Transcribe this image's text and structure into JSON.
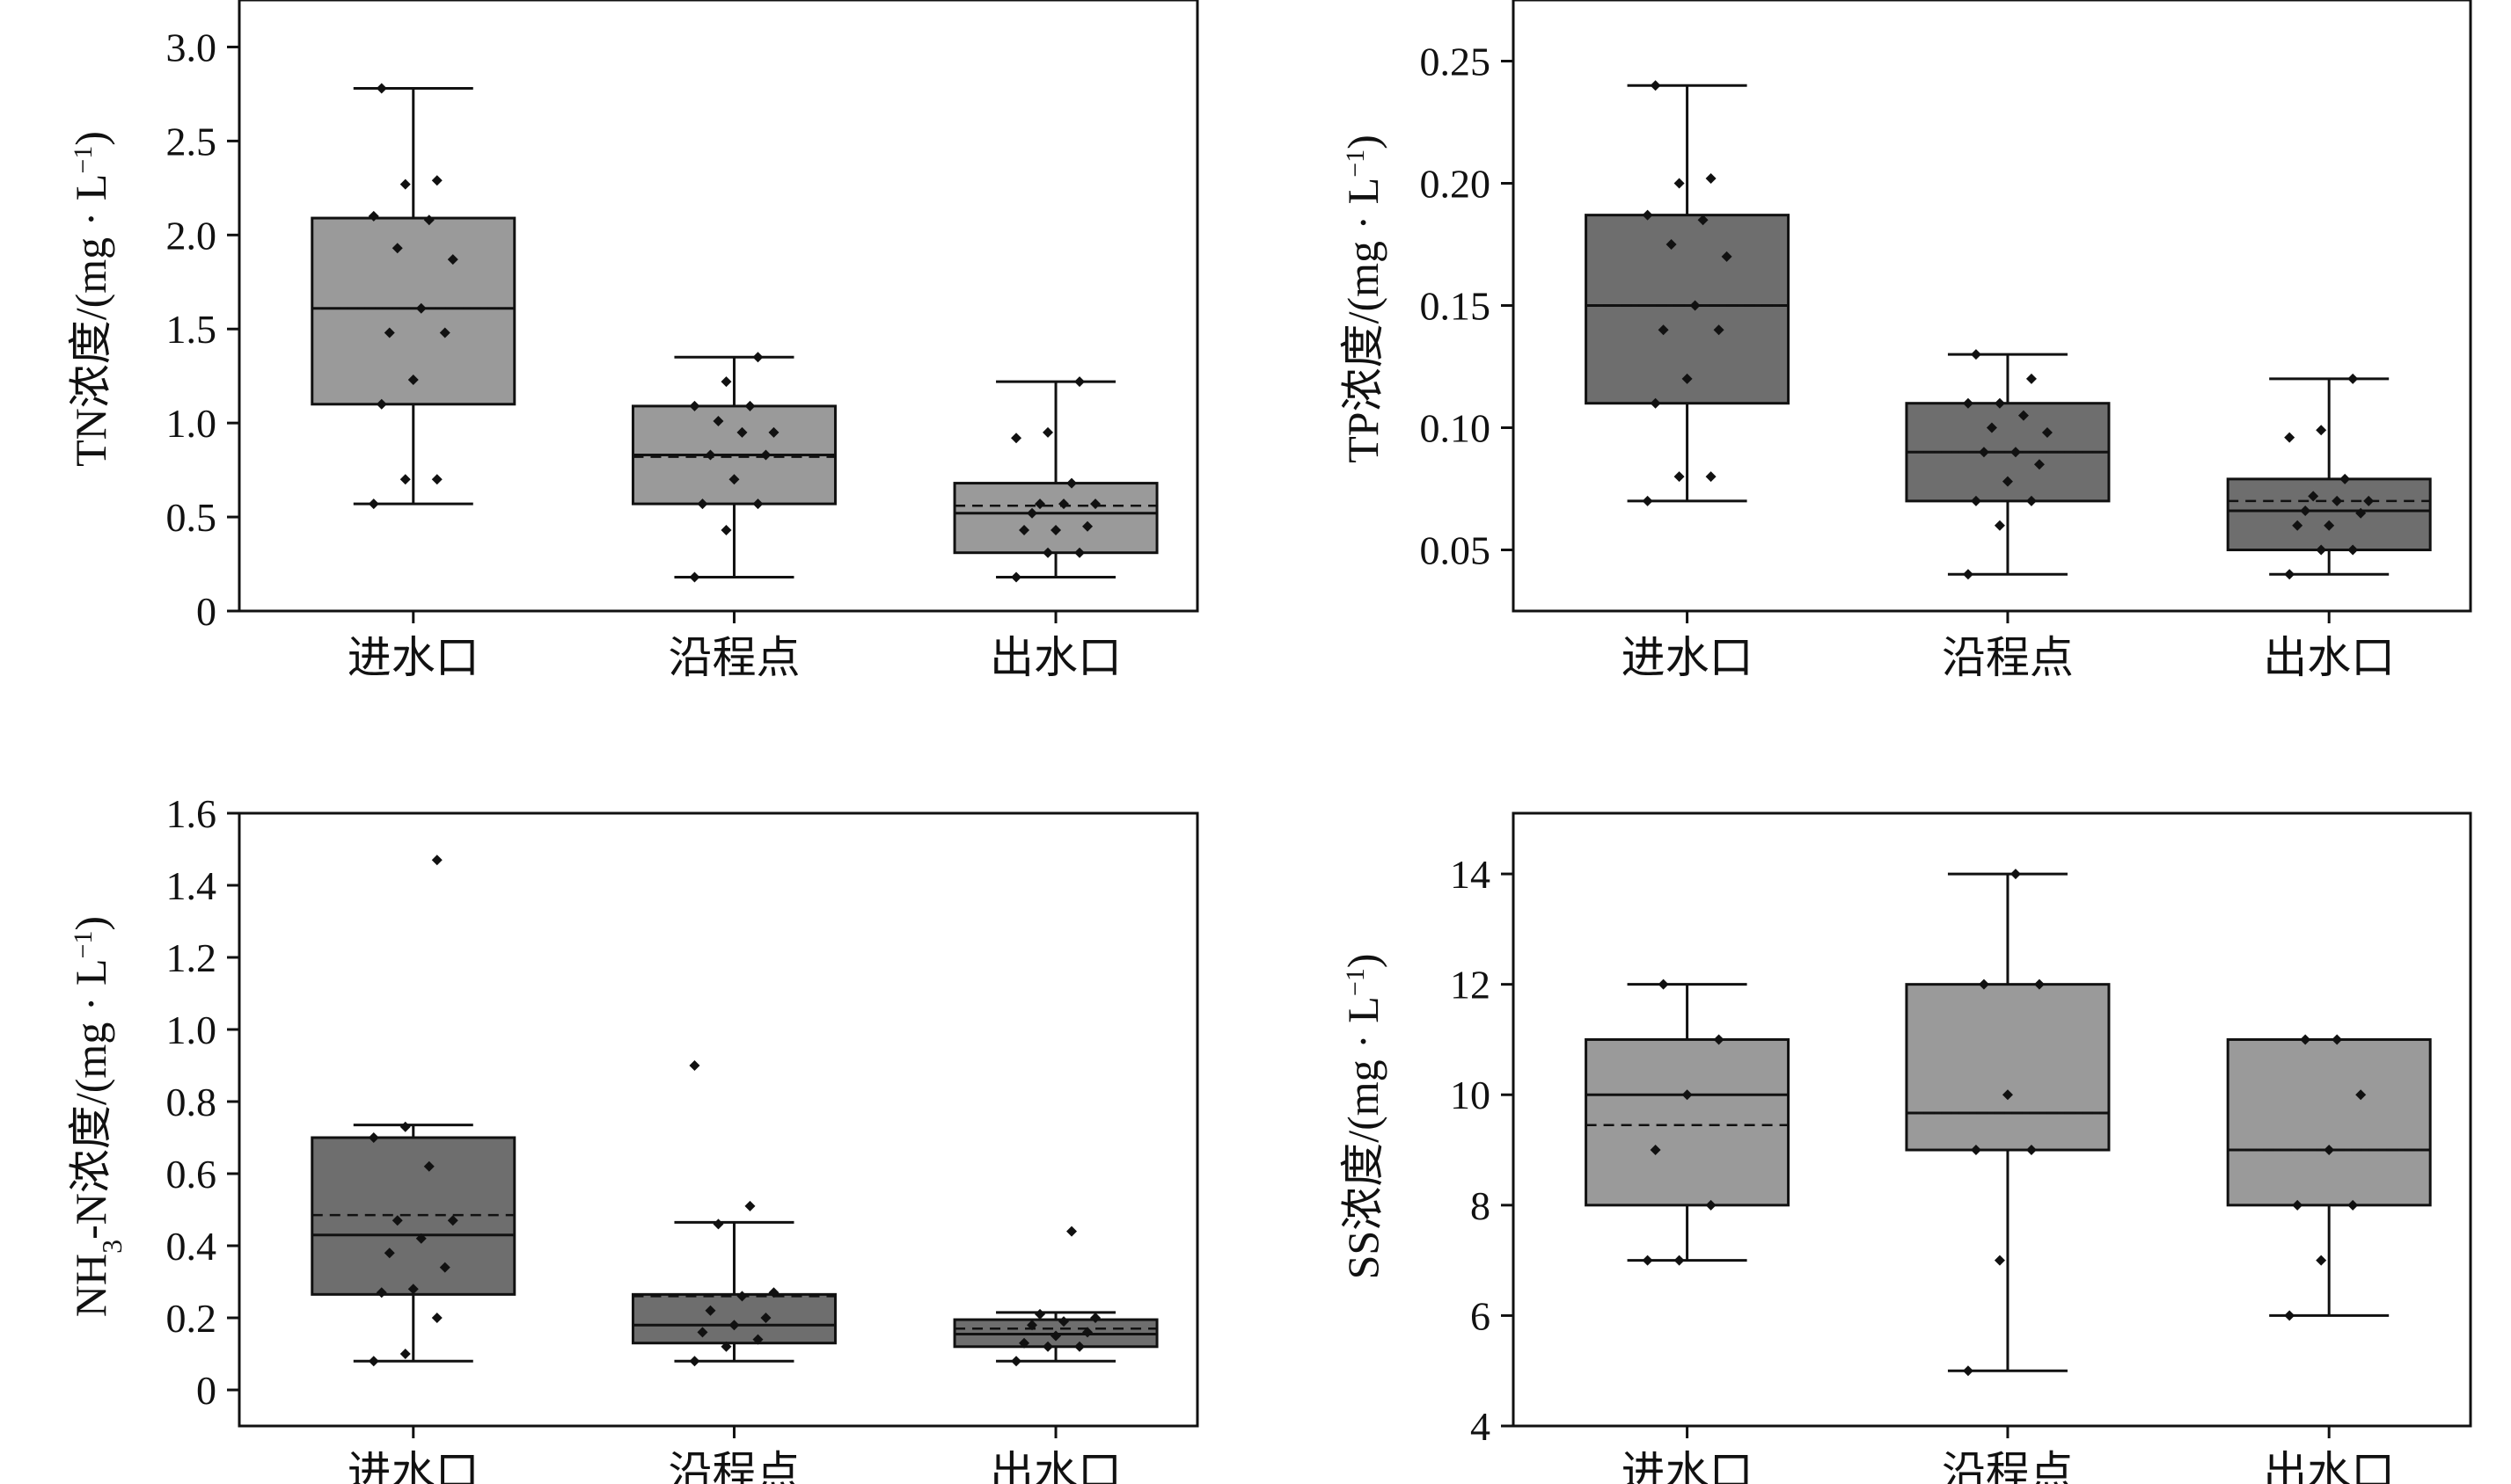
{
  "chart_data": [
    {
      "type": "box",
      "ylabel_main": "TN浓度/(mg · L",
      "ylabel_sup": "−1",
      "ylabel_tail": ")",
      "ylim": [
        0,
        3.25
      ],
      "yticks": [
        0,
        0.5,
        1.0,
        1.5,
        2.0,
        2.5,
        3.0
      ],
      "yticklabels": [
        "0",
        "0.5",
        "1.0",
        "1.5",
        "2.0",
        "2.5",
        "3.0"
      ],
      "categories": [
        "进水口",
        "沿程点",
        "出水口"
      ],
      "fill": "#9a9a9a",
      "boxes": [
        {
          "min": 0.57,
          "q1": 1.1,
          "median": 1.61,
          "mean": 1.61,
          "q3": 2.09,
          "max": 2.78,
          "points": [
            0.57,
            0.7,
            0.7,
            1.1,
            1.23,
            1.48,
            1.48,
            1.61,
            1.87,
            1.93,
            2.08,
            2.1,
            2.27,
            2.29,
            2.78
          ]
        },
        {
          "min": 0.18,
          "q1": 0.57,
          "median": 0.83,
          "mean": 0.82,
          "q3": 1.09,
          "max": 1.35,
          "points": [
            0.18,
            0.43,
            0.57,
            0.57,
            0.7,
            0.83,
            0.83,
            0.95,
            0.95,
            1.01,
            1.09,
            1.09,
            1.22,
            1.35
          ]
        },
        {
          "min": 0.18,
          "q1": 0.31,
          "median": 0.52,
          "mean": 0.56,
          "q3": 0.68,
          "max": 1.22,
          "points": [
            0.18,
            0.31,
            0.31,
            0.43,
            0.43,
            0.45,
            0.52,
            0.57,
            0.57,
            0.57,
            0.68,
            0.92,
            0.95,
            1.22
          ]
        }
      ]
    },
    {
      "type": "box",
      "ylabel_main": "TP浓度/(mg · L",
      "ylabel_sup": "−1",
      "ylabel_tail": ")",
      "ylim": [
        0.025,
        0.275
      ],
      "yticks": [
        0.05,
        0.1,
        0.15,
        0.2,
        0.25
      ],
      "yticklabels": [
        "0.05",
        "0.10",
        "0.15",
        "0.20",
        "0.25"
      ],
      "categories": [
        "进水口",
        "沿程点",
        "出水口"
      ],
      "fill": "#6e6e6e",
      "boxes": [
        {
          "min": 0.07,
          "q1": 0.11,
          "median": 0.15,
          "mean": 0.15,
          "q3": 0.187,
          "max": 0.24,
          "points": [
            0.07,
            0.08,
            0.08,
            0.11,
            0.12,
            0.14,
            0.14,
            0.15,
            0.17,
            0.175,
            0.185,
            0.187,
            0.2,
            0.202,
            0.24
          ]
        },
        {
          "min": 0.04,
          "q1": 0.07,
          "median": 0.09,
          "mean": 0.09,
          "q3": 0.11,
          "max": 0.13,
          "points": [
            0.04,
            0.06,
            0.07,
            0.07,
            0.078,
            0.085,
            0.09,
            0.09,
            0.098,
            0.1,
            0.105,
            0.11,
            0.11,
            0.12,
            0.13
          ]
        },
        {
          "min": 0.04,
          "q1": 0.05,
          "median": 0.066,
          "mean": 0.07,
          "q3": 0.079,
          "max": 0.12,
          "points": [
            0.04,
            0.05,
            0.05,
            0.06,
            0.06,
            0.065,
            0.066,
            0.07,
            0.07,
            0.072,
            0.079,
            0.096,
            0.099,
            0.12
          ]
        }
      ]
    },
    {
      "type": "box",
      "ylabel_main": "NH",
      "ylabel_sub": "3",
      "ylabel_mid": "-N浓度/(mg · L",
      "ylabel_sup": "−1",
      "ylabel_tail": ")",
      "ylim": [
        -0.1,
        1.6
      ],
      "yticks": [
        0,
        0.2,
        0.4,
        0.6,
        0.8,
        1.0,
        1.2,
        1.4,
        1.6
      ],
      "yticklabels": [
        "0",
        "0.2",
        "0.4",
        "0.6",
        "0.8",
        "1.0",
        "1.2",
        "1.4",
        "1.6"
      ],
      "categories": [
        "进水口",
        "沿程点",
        "出水口"
      ],
      "fill": "#6e6e6e",
      "boxes": [
        {
          "min": 0.08,
          "q1": 0.265,
          "median": 0.43,
          "mean": 0.485,
          "q3": 0.7,
          "max": 0.735,
          "points": [
            0.08,
            0.1,
            0.2,
            0.27,
            0.28,
            0.34,
            0.38,
            0.42,
            0.47,
            0.47,
            0.62,
            0.7,
            0.73,
            1.47
          ]
        },
        {
          "min": 0.08,
          "q1": 0.13,
          "median": 0.18,
          "mean": 0.26,
          "q3": 0.265,
          "max": 0.465,
          "points": [
            0.08,
            0.12,
            0.14,
            0.16,
            0.18,
            0.2,
            0.22,
            0.26,
            0.27,
            0.46,
            0.51,
            0.9
          ]
        },
        {
          "min": 0.08,
          "q1": 0.12,
          "median": 0.155,
          "mean": 0.17,
          "q3": 0.195,
          "max": 0.215,
          "points": [
            0.08,
            0.12,
            0.12,
            0.13,
            0.15,
            0.16,
            0.18,
            0.19,
            0.2,
            0.21,
            0.44
          ]
        }
      ]
    },
    {
      "type": "box",
      "ylabel_main": "SS浓度/(mg · L",
      "ylabel_sup": "−1",
      "ylabel_tail": ")",
      "ylim": [
        4,
        15.1
      ],
      "yticks": [
        4,
        6,
        8,
        10,
        12,
        14
      ],
      "yticklabels": [
        "4",
        "6",
        "8",
        "10",
        "12",
        "14"
      ],
      "categories": [
        "进水口",
        "沿程点",
        "出水口"
      ],
      "fill": "#9a9a9a",
      "boxes": [
        {
          "min": 7,
          "q1": 8,
          "median": 10,
          "mean": 9.45,
          "q3": 11,
          "max": 12,
          "points": [
            7,
            7,
            8,
            9,
            10,
            11,
            12
          ]
        },
        {
          "min": 5,
          "q1": 9,
          "median": 9.67,
          "mean": 9.67,
          "q3": 12,
          "max": 14,
          "points": [
            5,
            7,
            9,
            9,
            10,
            12,
            12,
            14
          ]
        },
        {
          "min": 6,
          "q1": 8,
          "median": 9,
          "mean": 9,
          "q3": 11,
          "max": 11,
          "points": [
            6,
            7,
            8,
            8,
            9,
            10,
            11,
            11
          ]
        }
      ]
    }
  ]
}
